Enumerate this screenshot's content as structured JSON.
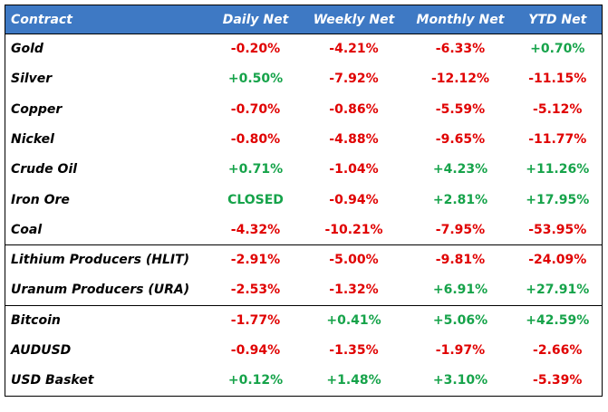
{
  "colors": {
    "header_bg": "#3e79c4",
    "negative": "#e00000",
    "positive": "#16a34a"
  },
  "header": [
    "Contract",
    "Daily Net",
    "Weekly Net",
    "Monthly Net",
    "YTD Net"
  ],
  "rows": [
    {
      "name": "Gold",
      "daily": "-0.20%",
      "weekly": "-4.21%",
      "monthly": "-6.33%",
      "ytd": "+0.70%"
    },
    {
      "name": "Silver",
      "daily": "+0.50%",
      "weekly": "-7.92%",
      "monthly": "-12.12%",
      "ytd": "-11.15%"
    },
    {
      "name": "Copper",
      "daily": "-0.70%",
      "weekly": "-0.86%",
      "monthly": "-5.59%",
      "ytd": "-5.12%"
    },
    {
      "name": "Nickel",
      "daily": "-0.80%",
      "weekly": "-4.88%",
      "monthly": "-9.65%",
      "ytd": "-11.77%"
    },
    {
      "name": "Crude Oil",
      "daily": "+0.71%",
      "weekly": "-1.04%",
      "monthly": "+4.23%",
      "ytd": "+11.26%"
    },
    {
      "name": "Iron Ore",
      "daily": "CLOSED",
      "weekly": "-0.94%",
      "monthly": "+2.81%",
      "ytd": "+17.95%"
    },
    {
      "name": "Coal",
      "daily": "-4.32%",
      "weekly": "-10.21%",
      "monthly": "-7.95%",
      "ytd": "-53.95%"
    },
    {
      "name": "Lithium Producers (HLIT)",
      "daily": "-2.91%",
      "weekly": "-5.00%",
      "monthly": "-9.81%",
      "ytd": "-24.09%"
    },
    {
      "name": "Uranum Producers (URA)",
      "daily": "-2.53%",
      "weekly": "-1.32%",
      "monthly": "+6.91%",
      "ytd": "+27.91%"
    },
    {
      "name": "Bitcoin",
      "daily": "-1.77%",
      "weekly": "+0.41%",
      "monthly": "+5.06%",
      "ytd": "+42.59%"
    },
    {
      "name": "AUDUSD",
      "daily": "-0.94%",
      "weekly": "-1.35%",
      "monthly": "-1.97%",
      "ytd": "-2.66%"
    },
    {
      "name": "USD Basket",
      "daily": "+0.12%",
      "weekly": "+1.48%",
      "monthly": "+3.10%",
      "ytd": "-5.39%"
    }
  ]
}
